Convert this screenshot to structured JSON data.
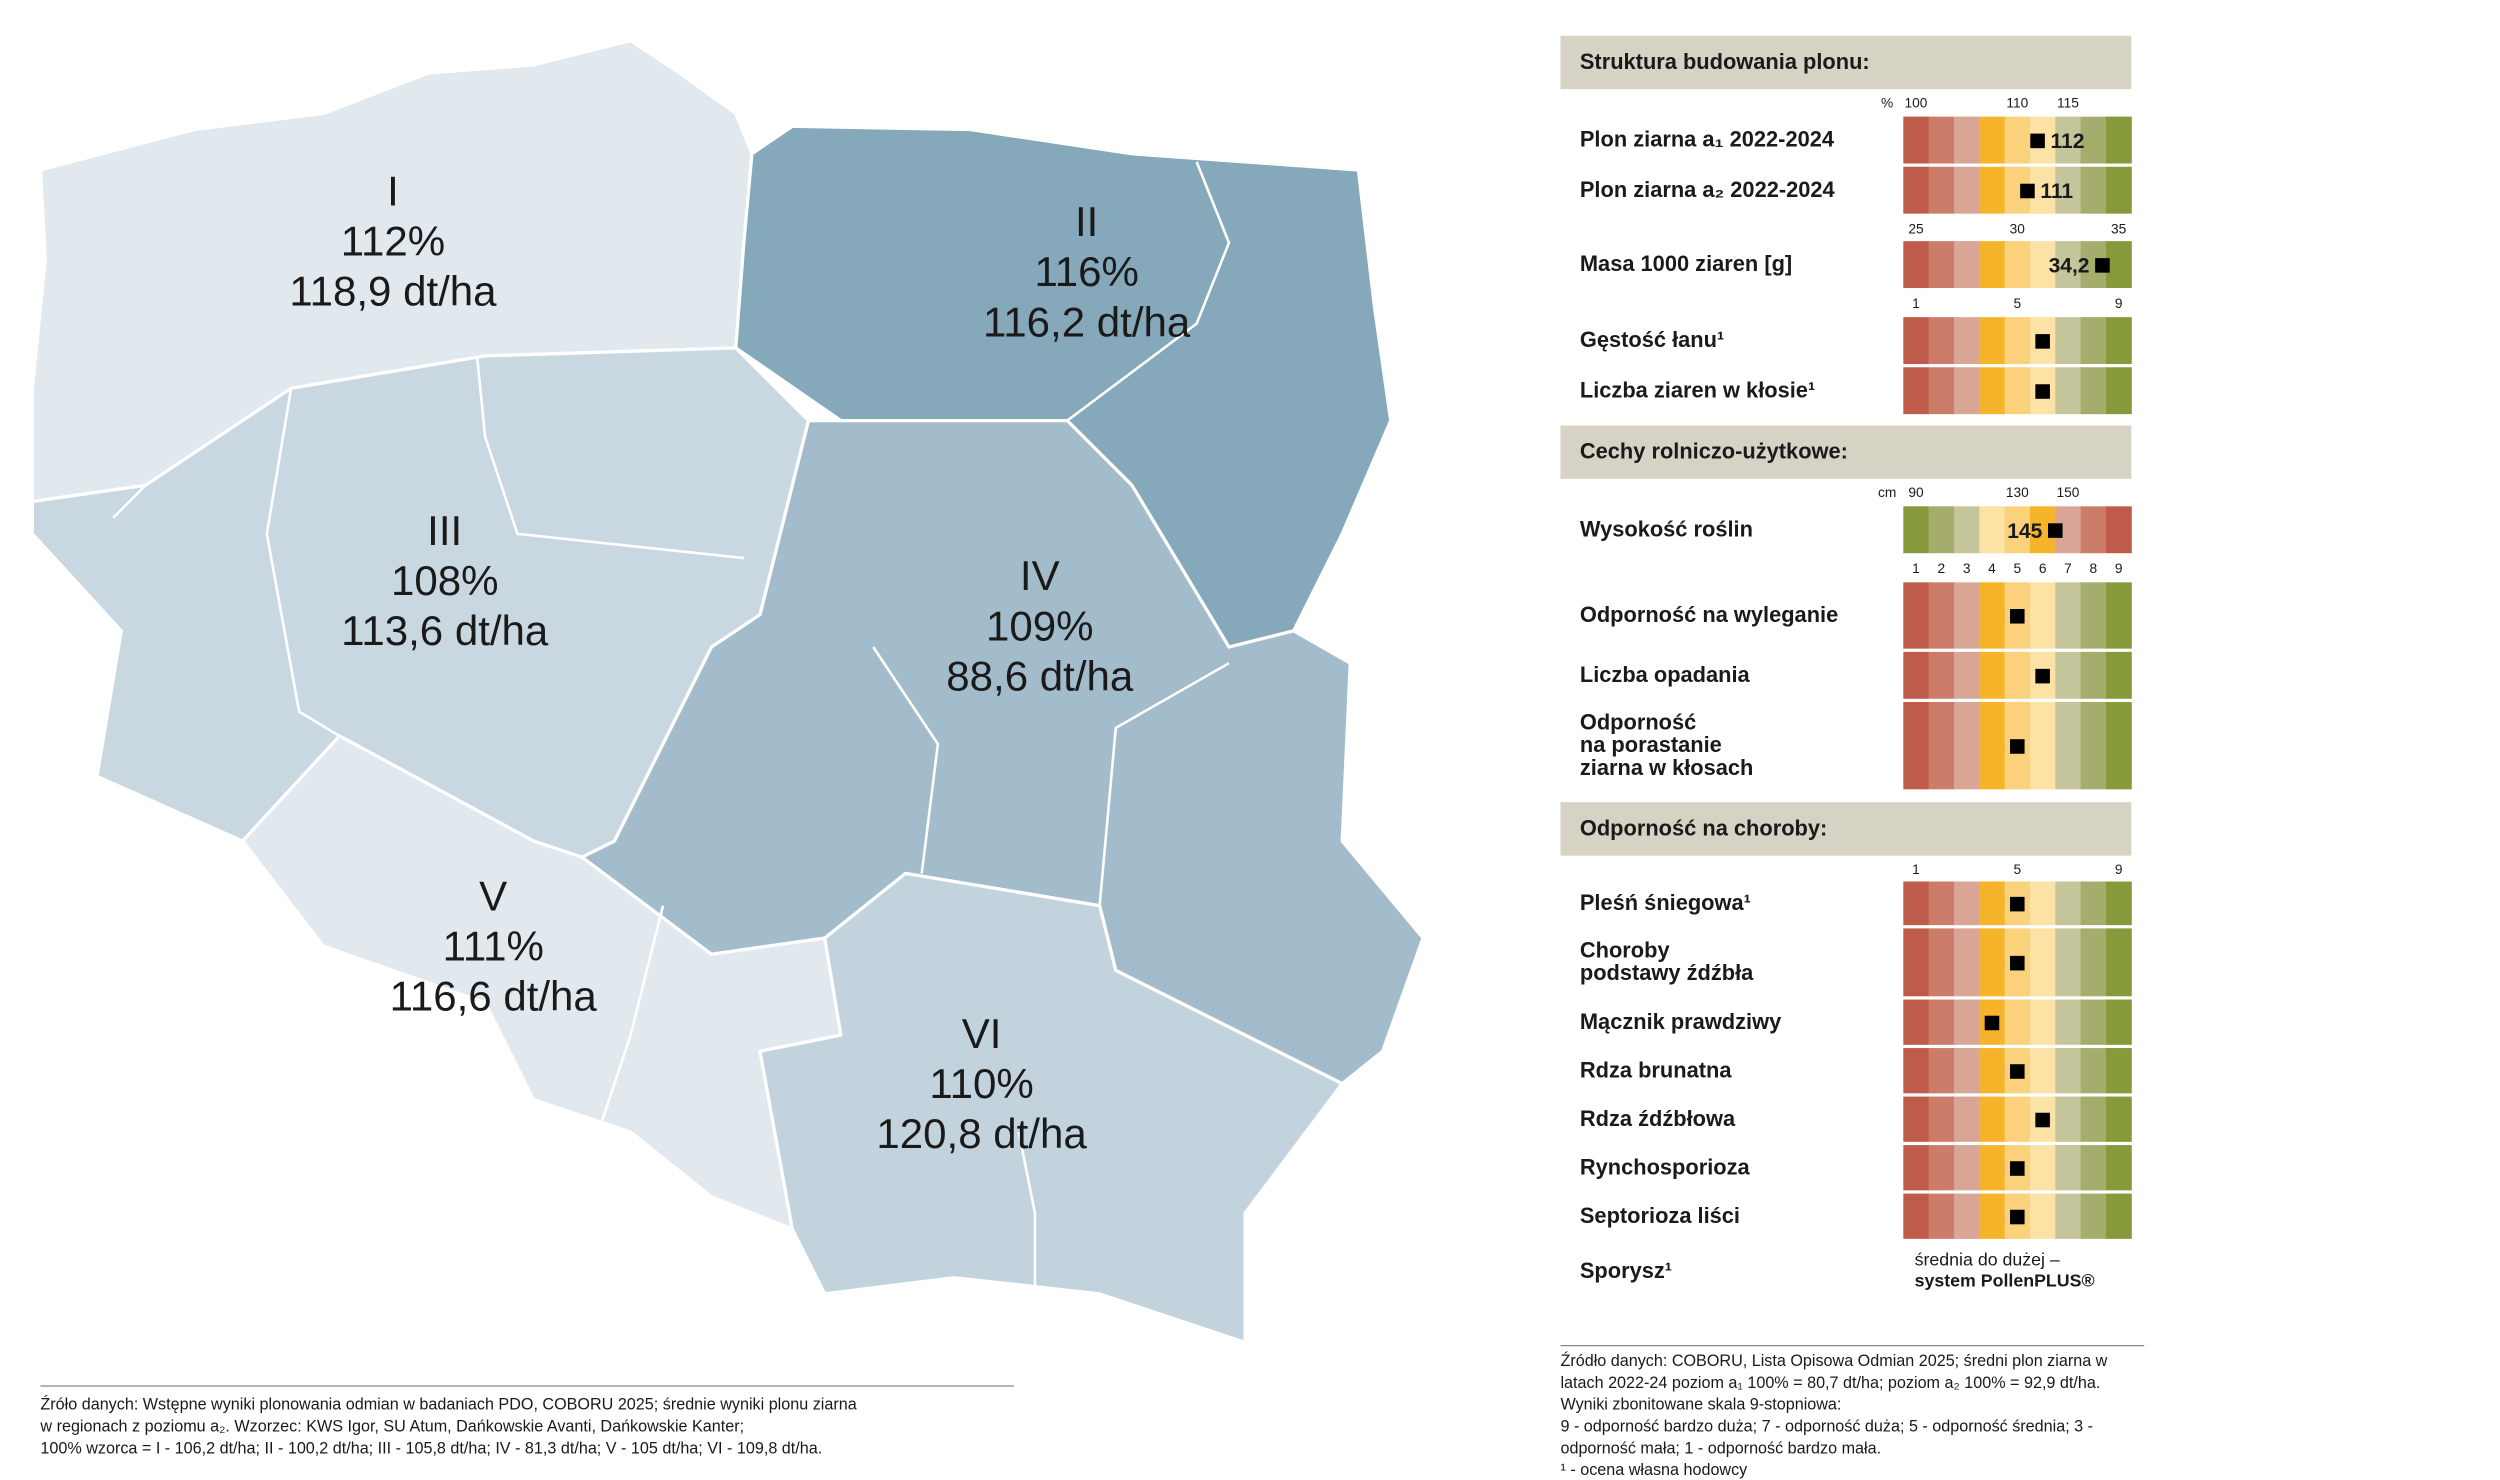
{
  "map": {
    "regions": [
      {
        "label": "I",
        "percent": "112%",
        "yield": "118,9 dt/ha"
      },
      {
        "label": "II",
        "percent": "116%",
        "yield": "116,2 dt/ha"
      },
      {
        "label": "III",
        "percent": "108%",
        "yield": "113,6 dt/ha"
      },
      {
        "label": "IV",
        "percent": "109%",
        "yield": "88,6 dt/ha"
      },
      {
        "label": "V",
        "percent": "111%",
        "yield": "116,6 dt/ha"
      },
      {
        "label": "VI",
        "percent": "110%",
        "yield": "120,8 dt/ha"
      }
    ],
    "source": [
      "Źróło danych: Wstępne wyniki plonowania odmian w badaniach PDO, COBORU 2025; średnie wyniki plonu ziarna",
      "w regionach z poziomu a₂. Wzorzec: KWS Igor, SU Atum, Dańkowskie Avanti, Dańkowskie Kanter;",
      "100% wzorca = I - 106,2 dt/ha; II - 100,2 dt/ha; III - 105,8 dt/ha; IV - 81,3 dt/ha; V - 105 dt/ha; VI - 109,8 dt/ha."
    ]
  },
  "panel": {
    "scale_colors": [
      "#bf5b4b",
      "#cc7d6a",
      "#d9a596",
      "#f6b42a",
      "#fbd27c",
      "#fde2a6",
      "#c4c59b",
      "#a4ad6c",
      "#86993b"
    ],
    "sections": [
      {
        "title": "Struktura budowania plonu:",
        "blocks": [
          {
            "unit": "%",
            "lim": [
              100,
              120
            ],
            "ticks": [
              100,
              110,
              115
            ],
            "rows": [
              {
                "label": [
                  "Plon ziarna a₁ 2022-2024"
                ],
                "value": 112,
                "value_label": "112"
              },
              {
                "label": [
                  "Plon ziarna a₂ 2022-2024"
                ],
                "value": 111,
                "value_label": "111"
              }
            ]
          },
          {
            "lim": [
              25,
              35
            ],
            "ticks": [
              25,
              30,
              35
            ],
            "rows": [
              {
                "label": [
                  "Masa 1000 ziaren [g]"
                ],
                "value": 34.2,
                "value_label": "34,2"
              }
            ]
          },
          {
            "lim": [
              1,
              9
            ],
            "ticks": [
              1,
              5,
              9
            ],
            "rows": [
              {
                "label": [
                  "Gęstość łanu¹"
                ],
                "value": 6
              },
              {
                "label": [
                  "Liczba ziaren w kłosie¹"
                ],
                "value": 6
              }
            ]
          }
        ]
      },
      {
        "title": "Cechy rolniczo-użytkowe:",
        "blocks": [
          {
            "unit": "cm",
            "lim": [
              90,
              170
            ],
            "reversed": true,
            "ticks": [
              90,
              130,
              150
            ],
            "rows": [
              {
                "label": [
                  "Wysokość roślin"
                ],
                "value": 145,
                "value_label": "145"
              }
            ]
          },
          {
            "lim": [
              1,
              9
            ],
            "ticks": [
              1,
              2,
              3,
              4,
              5,
              6,
              7,
              8,
              9
            ],
            "rows": [
              {
                "label": [
                  "Odporność na wyleganie"
                ],
                "value": 5
              },
              {
                "label": [
                  "Liczba opadania"
                ],
                "value": 6
              },
              {
                "label": [
                  "Odporność",
                  "na porastanie",
                  "ziarna w kłosach"
                ],
                "value": 5
              }
            ]
          }
        ]
      },
      {
        "title": "Odporność na choroby:",
        "blocks": [
          {
            "lim": [
              1,
              9
            ],
            "ticks": [
              1,
              5,
              9
            ],
            "rows": [
              {
                "label": [
                  "Pleśń śniegowa¹"
                ],
                "value": 5
              },
              {
                "label": [
                  "Choroby",
                  "podstawy źdźbła"
                ],
                "value": 5
              },
              {
                "label": [
                  "Mącznik prawdziwy"
                ],
                "value": 4
              },
              {
                "label": [
                  "Rdza brunatna"
                ],
                "value": 5
              },
              {
                "label": [
                  "Rdza źdźbłowa"
                ],
                "value": 6
              },
              {
                "label": [
                  "Rynchosporioza"
                ],
                "value": 5
              },
              {
                "label": [
                  "Septorioza liści"
                ],
                "value": 5
              },
              {
                "label": [
                  "Sporysz¹"
                ],
                "note": [
                  "średnia do dużej –",
                  "system PollenPLUS®"
                ]
              }
            ]
          }
        ]
      }
    ],
    "source": [
      "Źródło danych: COBORU, Lista Opisowa Odmian 2025; średni plon ziarna w",
      "latach 2022-24  poziom a₁ 100% =  80,7 dt/ha; poziom a₂ 100% = 92,9 dt/ha.",
      "Wyniki zbonitowane skala 9-stopniowa:",
      "9 - odporność bardzo duża; 7 - odporność duża; 5 - odporność średnia; 3 -",
      "odporność mała; 1 - odporność bardzo mała.",
      "¹ - ocena własna hodowcy"
    ]
  }
}
